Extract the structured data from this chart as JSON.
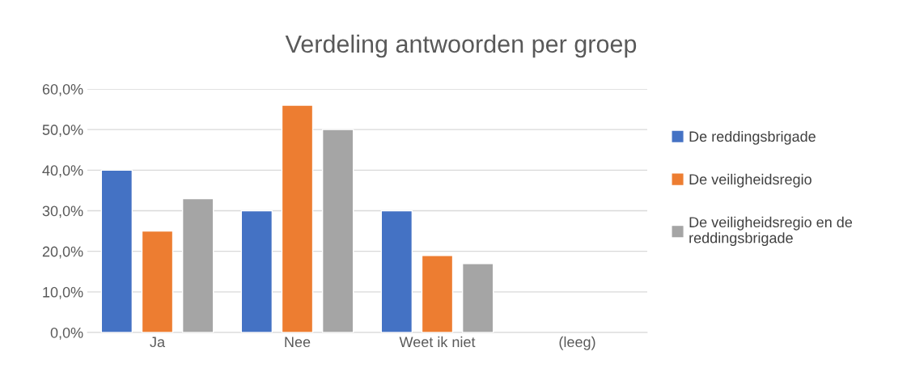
{
  "chart_data": {
    "type": "bar",
    "title": "Verdeling antwoorden per groep",
    "categories": [
      "Ja",
      "Nee",
      "Weet ik niet",
      "(leeg)"
    ],
    "series": [
      {
        "name": "De reddingsbrigade",
        "color": "#4472c4",
        "values": [
          40,
          30,
          30,
          null
        ]
      },
      {
        "name": "De veiligheidsregio",
        "color": "#ed7d31",
        "values": [
          25,
          56,
          19,
          null
        ]
      },
      {
        "name": "De veiligheidsregio en de reddingsbrigade",
        "color": "#a5a5a5",
        "values": [
          33,
          50,
          17,
          null
        ]
      }
    ],
    "ylim": [
      0,
      60
    ],
    "yticks": [
      {
        "value": 0,
        "label": "0,0%"
      },
      {
        "value": 10,
        "label": "10,0%"
      },
      {
        "value": 20,
        "label": "20,0%"
      },
      {
        "value": 30,
        "label": "30,0%"
      },
      {
        "value": 40,
        "label": "40,0%"
      },
      {
        "value": 50,
        "label": "50,0%"
      },
      {
        "value": 60,
        "label": "60,0%"
      }
    ],
    "grid": "y",
    "legend": "right"
  }
}
